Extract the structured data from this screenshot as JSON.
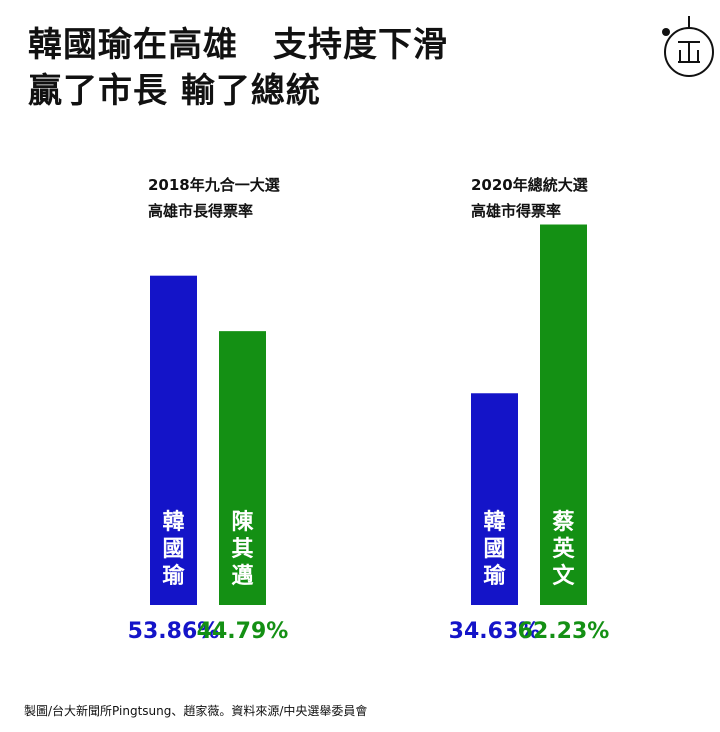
{
  "headline": {
    "line1": "韓國瑜在高雄　支持度下滑",
    "line2": "贏了市長 輸了總統"
  },
  "logo": {
    "icon": "theinitium-logo",
    "text": "端"
  },
  "source_text": "製圖/台大新聞所Pingtsung、趙家薇。資料來源/中央選舉委員會",
  "colors": {
    "blue": "#1414c8",
    "green": "#149014"
  },
  "chart_data": [
    {
      "type": "bar",
      "title": "2018年九合一大選",
      "subtitle": "高雄市長得票率",
      "categories": [
        "韓國瑜",
        "陳其邁"
      ],
      "values": [
        53.86,
        44.79
      ],
      "value_labels": [
        "53.86%",
        "44.79%"
      ],
      "colors": [
        "#1414c8",
        "#149014"
      ],
      "ylim": [
        0,
        70
      ]
    },
    {
      "type": "bar",
      "title": "2020年總統大選",
      "subtitle": "高雄市得票率",
      "categories": [
        "韓國瑜",
        "蔡英文"
      ],
      "values": [
        34.63,
        62.23
      ],
      "value_labels": [
        "34.63%",
        "62.23%"
      ],
      "colors": [
        "#1414c8",
        "#149014"
      ],
      "ylim": [
        0,
        70
      ]
    }
  ]
}
